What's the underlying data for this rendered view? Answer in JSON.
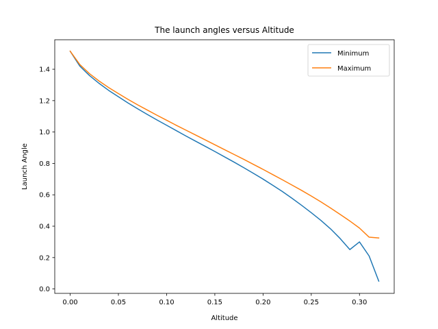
{
  "chart_data": {
    "type": "line",
    "title": "The launch angles versus Altitude",
    "xlabel": "Altitude",
    "ylabel": "Launch Angle",
    "xlim": [
      -0.016,
      0.336
    ],
    "ylim": [
      -0.028,
      1.588
    ],
    "xticks": [
      0.0,
      0.05,
      0.1,
      0.15,
      0.2,
      0.25,
      0.3
    ],
    "xtick_labels": [
      "0.00",
      "0.05",
      "0.10",
      "0.15",
      "0.20",
      "0.25",
      "0.30"
    ],
    "yticks": [
      0.0,
      0.2,
      0.4,
      0.6,
      0.8,
      1.0,
      1.2,
      1.4
    ],
    "ytick_labels": [
      "0.0",
      "0.2",
      "0.4",
      "0.6",
      "0.8",
      "1.0",
      "1.2",
      "1.4"
    ],
    "grid": false,
    "legend_position": "top-right",
    "x": [
      0.0,
      0.01,
      0.02,
      0.03,
      0.04,
      0.05,
      0.06,
      0.07,
      0.08,
      0.09,
      0.1,
      0.11,
      0.12,
      0.13,
      0.14,
      0.15,
      0.16,
      0.17,
      0.18,
      0.19,
      0.2,
      0.21,
      0.22,
      0.23,
      0.24,
      0.25,
      0.26,
      0.27,
      0.28,
      0.29,
      0.3,
      0.31,
      0.32
    ],
    "series": [
      {
        "name": "Minimum",
        "color": "#1f77b4",
        "values": [
          1.515,
          1.42,
          1.36,
          1.31,
          1.265,
          1.225,
          1.185,
          1.148,
          1.112,
          1.077,
          1.043,
          1.009,
          0.975,
          0.942,
          0.909,
          0.876,
          0.842,
          0.808,
          0.773,
          0.737,
          0.7,
          0.661,
          0.621,
          0.578,
          0.533,
          0.486,
          0.437,
          0.383,
          0.321,
          0.251,
          0.3,
          0.21,
          0.05
        ]
      },
      {
        "name": "Maximum",
        "color": "#ff7f0e",
        "values": [
          1.515,
          1.43,
          1.372,
          1.325,
          1.283,
          1.245,
          1.208,
          1.173,
          1.14,
          1.107,
          1.075,
          1.043,
          1.012,
          0.981,
          0.95,
          0.919,
          0.888,
          0.857,
          0.826,
          0.794,
          0.762,
          0.729,
          0.696,
          0.662,
          0.628,
          0.592,
          0.555,
          0.516,
          0.475,
          0.433,
          0.388,
          0.33,
          0.325
        ]
      }
    ]
  }
}
